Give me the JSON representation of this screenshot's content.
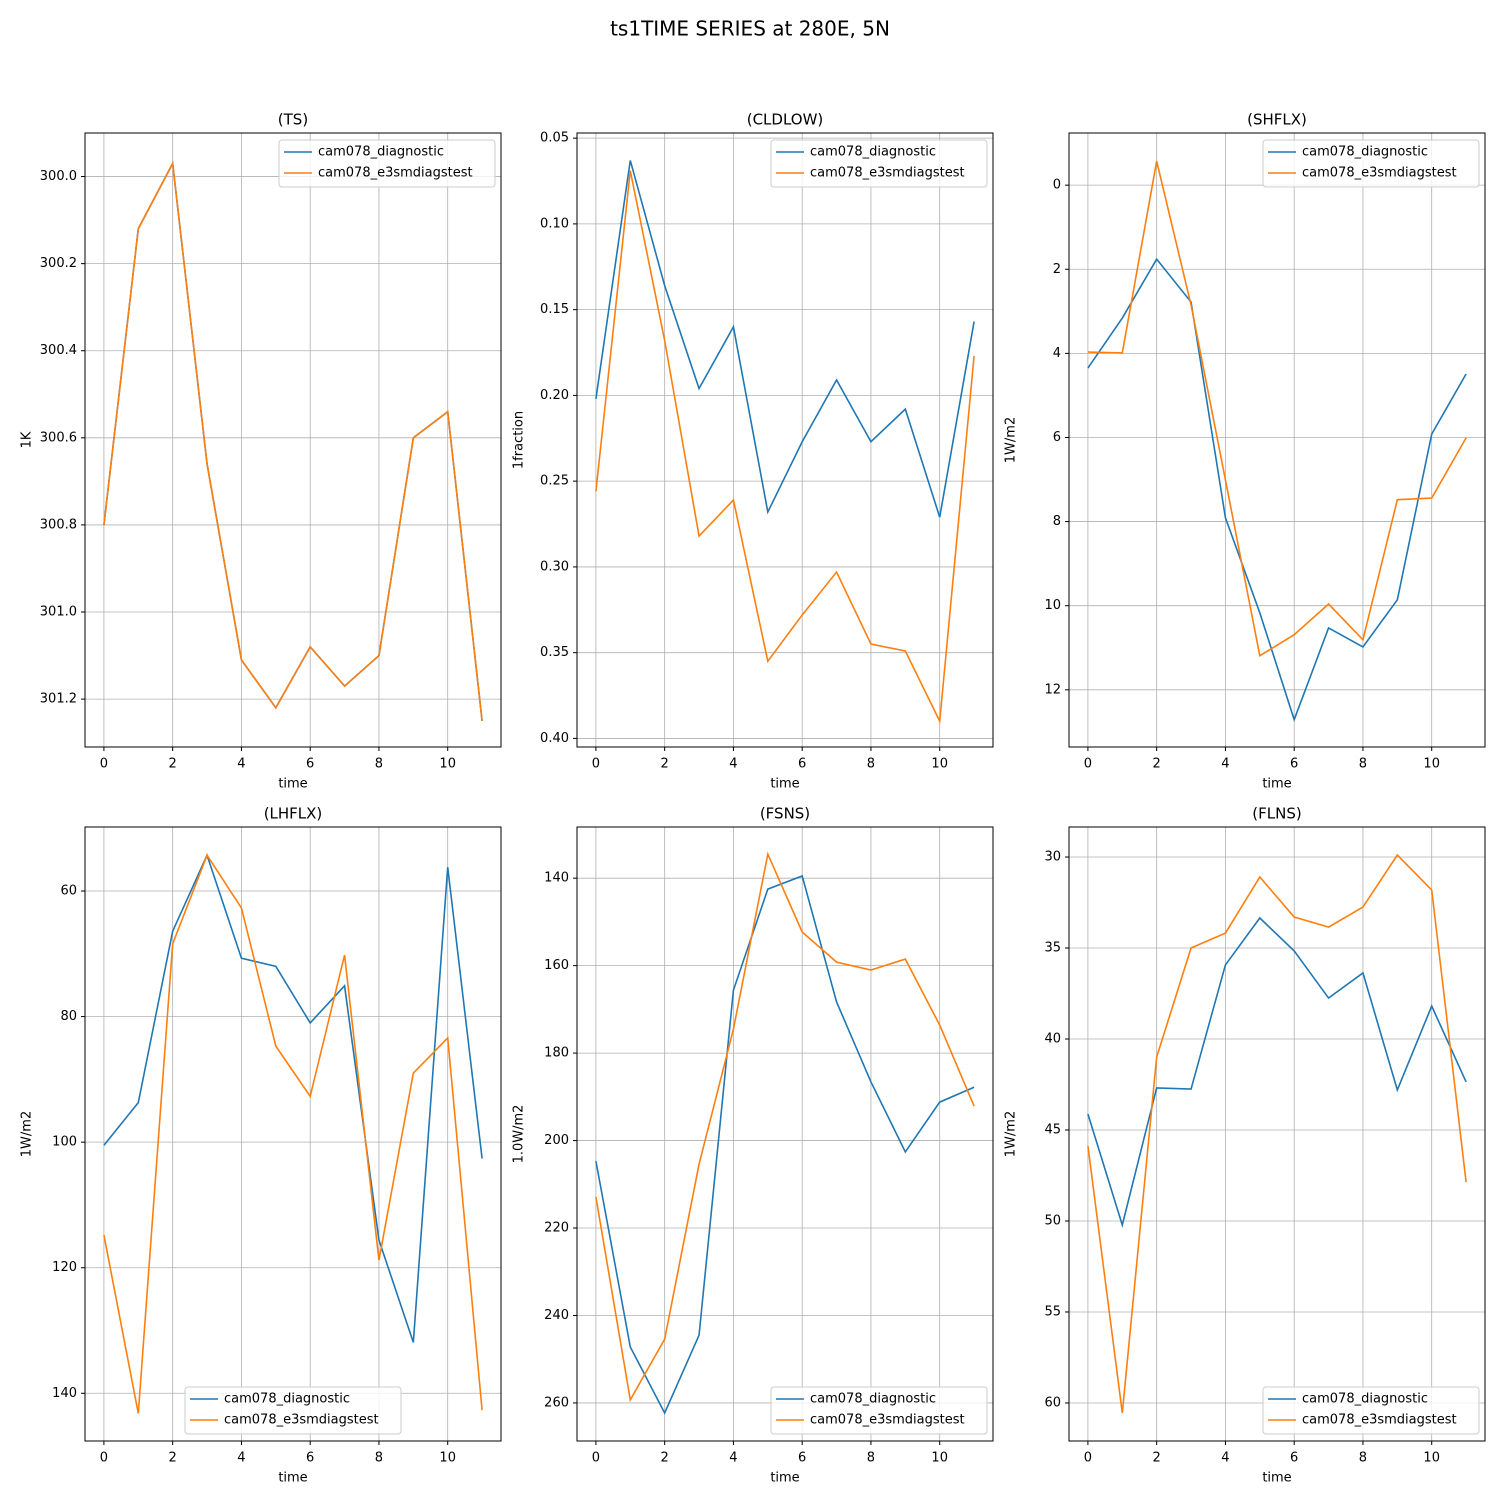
{
  "title": "ts1TIME SERIES at 280E, 5N",
  "chart_data": [
    {
      "type": "line",
      "title": "(TS)",
      "xlabel": "time",
      "ylabel": "1K",
      "x": [
        0,
        1,
        2,
        3,
        4,
        5,
        6,
        7,
        8,
        9,
        10,
        11
      ],
      "xlim": [
        -0.55,
        11.55
      ],
      "xticks": [
        0,
        2,
        4,
        6,
        8,
        10
      ],
      "ylim": [
        301.31,
        299.9
      ],
      "yticks": [
        {
          "value": 300,
          "label": "300.0"
        },
        300.2,
        300.4,
        300.6,
        300.8,
        {
          "value": 301,
          "label": "301.0"
        },
        301.2
      ],
      "grid": true,
      "legend": "upper right",
      "series": [
        {
          "name": "cam078_diagnostic",
          "color": "#1f77b4",
          "values": [
            300.8,
            300.12,
            299.97,
            300.66,
            301.11,
            301.22,
            301.08,
            301.17,
            301.1,
            300.6,
            300.54,
            301.25
          ]
        },
        {
          "name": "cam078_e3smdiagstest",
          "color": "#ff7f0e",
          "values": [
            300.8,
            300.12,
            299.97,
            300.66,
            301.11,
            301.22,
            301.08,
            301.17,
            301.1,
            300.6,
            300.54,
            301.25
          ]
        }
      ]
    },
    {
      "type": "line",
      "title": "(CLDLOW)",
      "xlabel": "time",
      "ylabel": "1fraction",
      "x": [
        0,
        1,
        2,
        3,
        4,
        5,
        6,
        7,
        8,
        9,
        10,
        11
      ],
      "xlim": [
        -0.55,
        11.55
      ],
      "xticks": [
        0,
        2,
        4,
        6,
        8,
        10
      ],
      "ylim": [
        0.405,
        0.047
      ],
      "yticks": [
        0.05,
        {
          "value": 0.1,
          "label": "0.10"
        },
        0.15,
        {
          "value": 0.2,
          "label": "0.20"
        },
        0.25,
        {
          "value": 0.3,
          "label": "0.30"
        },
        0.35,
        {
          "value": 0.4,
          "label": "0.40"
        }
      ],
      "grid": true,
      "legend": "upper right",
      "series": [
        {
          "name": "cam078_diagnostic",
          "color": "#1f77b4",
          "values": [
            0.202,
            0.063,
            0.136,
            0.196,
            0.16,
            0.268,
            0.227,
            0.191,
            0.227,
            0.208,
            0.271,
            0.157
          ]
        },
        {
          "name": "cam078_e3smdiagstest",
          "color": "#ff7f0e",
          "values": [
            0.256,
            0.069,
            0.168,
            0.282,
            0.261,
            0.355,
            0.328,
            0.303,
            0.345,
            0.349,
            0.39,
            0.177
          ]
        }
      ]
    },
    {
      "type": "line",
      "title": "(SHFLX)",
      "xlabel": "time",
      "ylabel": "1W/m2",
      "x": [
        0,
        1,
        2,
        3,
        4,
        5,
        6,
        7,
        8,
        9,
        10,
        11
      ],
      "xlim": [
        -0.55,
        11.55
      ],
      "xticks": [
        0,
        2,
        4,
        6,
        8,
        10
      ],
      "ylim": [
        13.36,
        -1.24
      ],
      "yticks": [
        0,
        2,
        4,
        6,
        8,
        10,
        12
      ],
      "grid": true,
      "legend": "upper right",
      "series": [
        {
          "name": "cam078_diagnostic",
          "color": "#1f77b4",
          "values": [
            4.35,
            3.16,
            1.76,
            2.78,
            7.91,
            10.17,
            12.71,
            10.53,
            10.98,
            9.86,
            5.92,
            4.49
          ]
        },
        {
          "name": "cam078_e3smdiagstest",
          "color": "#ff7f0e",
          "values": [
            3.97,
            3.99,
            -0.57,
            2.85,
            7.01,
            11.19,
            10.69,
            9.96,
            10.81,
            7.48,
            7.44,
            6.01
          ]
        }
      ]
    },
    {
      "type": "line",
      "title": "(LHFLX)",
      "xlabel": "time",
      "ylabel": "1W/m2",
      "x": [
        0,
        1,
        2,
        3,
        4,
        5,
        6,
        7,
        8,
        9,
        10,
        11
      ],
      "xlim": [
        -0.55,
        11.55
      ],
      "xticks": [
        0,
        2,
        4,
        6,
        8,
        10
      ],
      "ylim": [
        147.6,
        49.8
      ],
      "yticks": [
        60,
        80,
        100,
        120,
        140
      ],
      "grid": true,
      "legend": "lower center",
      "series": [
        {
          "name": "cam078_diagnostic",
          "color": "#1f77b4",
          "values": [
            100.5,
            93.7,
            66.4,
            54.3,
            70.7,
            72.0,
            81.0,
            75.1,
            115.6,
            131.9,
            56.2,
            102.6
          ]
        },
        {
          "name": "cam078_e3smdiagstest",
          "color": "#ff7f0e",
          "values": [
            114.8,
            143.2,
            68.4,
            54.3,
            62.7,
            84.7,
            92.7,
            70.2,
            118.8,
            89.0,
            83.4,
            142.7
          ]
        }
      ]
    },
    {
      "type": "line",
      "title": "(FSNS)",
      "xlabel": "time",
      "ylabel": "1.0W/m2",
      "x": [
        0,
        1,
        2,
        3,
        4,
        5,
        6,
        7,
        8,
        9,
        10,
        11
      ],
      "xlim": [
        -0.55,
        11.55
      ],
      "xticks": [
        0,
        2,
        4,
        6,
        8,
        10
      ],
      "ylim": [
        268.7,
        128.3
      ],
      "yticks": [
        140,
        160,
        180,
        200,
        220,
        240,
        260
      ],
      "grid": true,
      "legend": "lower right",
      "series": [
        {
          "name": "cam078_diagnostic",
          "color": "#1f77b4",
          "values": [
            204.7,
            247.2,
            262.3,
            244.5,
            165.6,
            142.5,
            139.5,
            168.3,
            186.6,
            202.6,
            191.2,
            187.8
          ]
        },
        {
          "name": "cam078_e3smdiagstest",
          "color": "#ff7f0e",
          "values": [
            212.9,
            259.3,
            245.4,
            205.4,
            174.5,
            134.5,
            152.3,
            159.2,
            161.0,
            158.5,
            173.6,
            192.1
          ]
        }
      ]
    },
    {
      "type": "line",
      "title": "(FLNS)",
      "xlabel": "time",
      "ylabel": "1W/m2",
      "x": [
        0,
        1,
        2,
        3,
        4,
        5,
        6,
        7,
        8,
        9,
        10,
        11
      ],
      "xlim": [
        -0.55,
        11.55
      ],
      "xticks": [
        0,
        2,
        4,
        6,
        8,
        10
      ],
      "ylim": [
        62.09,
        28.35
      ],
      "yticks": [
        30,
        35,
        40,
        45,
        50,
        55,
        60
      ],
      "grid": true,
      "legend": "lower right",
      "series": [
        {
          "name": "cam078_diagnostic",
          "color": "#1f77b4",
          "values": [
            44.12,
            50.22,
            42.69,
            42.75,
            35.93,
            33.35,
            35.16,
            37.75,
            36.37,
            42.8,
            38.19,
            42.36
          ]
        },
        {
          "name": "cam078_e3smdiagstest",
          "color": "#ff7f0e",
          "values": [
            45.88,
            60.55,
            40.99,
            35.0,
            34.18,
            31.1,
            33.3,
            33.85,
            32.75,
            29.89,
            31.81,
            47.86
          ]
        }
      ]
    }
  ]
}
